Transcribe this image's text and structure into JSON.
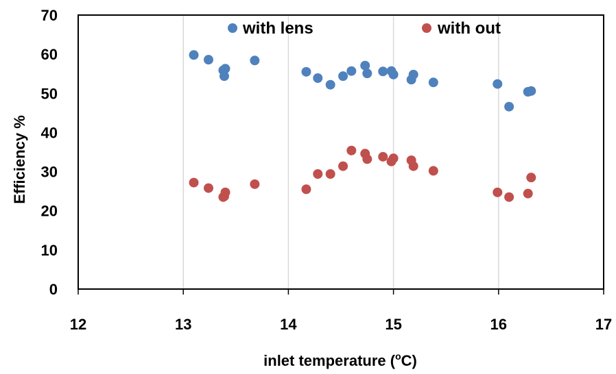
{
  "chart_data": {
    "type": "scatter",
    "title": "",
    "xlabel": "inlet temperature (",
    "xlabel_sup": "o",
    "xlabel_suffix": "C)",
    "ylabel": "Efficiency %",
    "xlim": [
      12,
      17
    ],
    "ylim": [
      0,
      70
    ],
    "xticks": [
      "12",
      "13",
      "14",
      "15",
      "16",
      "17"
    ],
    "yticks": [
      "0",
      "10",
      "20",
      "30",
      "40",
      "50",
      "60",
      "70"
    ],
    "grid": "vertical major gridlines",
    "legend_position": "top (inside plot)",
    "series": [
      {
        "name": "with lens",
        "color": "#4F81BD",
        "points": [
          [
            13.1,
            59.8
          ],
          [
            13.24,
            58.6
          ],
          [
            13.38,
            55.9
          ],
          [
            13.39,
            54.4
          ],
          [
            13.4,
            56.3
          ],
          [
            13.68,
            58.4
          ],
          [
            14.17,
            55.5
          ],
          [
            14.28,
            53.9
          ],
          [
            14.4,
            52.2
          ],
          [
            14.52,
            54.4
          ],
          [
            14.6,
            55.7
          ],
          [
            14.73,
            57.1
          ],
          [
            14.75,
            55.1
          ],
          [
            14.9,
            55.6
          ],
          [
            14.98,
            55.7
          ],
          [
            15.0,
            54.8
          ],
          [
            15.17,
            53.5
          ],
          [
            15.19,
            54.8
          ],
          [
            15.38,
            52.8
          ],
          [
            15.99,
            52.4
          ],
          [
            16.1,
            46.6
          ],
          [
            16.28,
            50.4
          ],
          [
            16.31,
            50.6
          ]
        ]
      },
      {
        "name": "with out",
        "color": "#C0504D",
        "points": [
          [
            13.1,
            27.2
          ],
          [
            13.24,
            25.8
          ],
          [
            13.38,
            23.5
          ],
          [
            13.39,
            23.7
          ],
          [
            13.4,
            24.7
          ],
          [
            13.68,
            26.8
          ],
          [
            14.17,
            25.5
          ],
          [
            14.28,
            29.4
          ],
          [
            14.4,
            29.4
          ],
          [
            14.52,
            31.4
          ],
          [
            14.6,
            35.4
          ],
          [
            14.73,
            34.6
          ],
          [
            14.75,
            33.2
          ],
          [
            14.9,
            33.8
          ],
          [
            14.98,
            32.6
          ],
          [
            15.0,
            33.4
          ],
          [
            15.17,
            32.9
          ],
          [
            15.19,
            31.4
          ],
          [
            15.38,
            30.2
          ],
          [
            15.99,
            24.7
          ],
          [
            16.1,
            23.5
          ],
          [
            16.28,
            24.4
          ],
          [
            16.31,
            28.5
          ]
        ]
      }
    ]
  }
}
